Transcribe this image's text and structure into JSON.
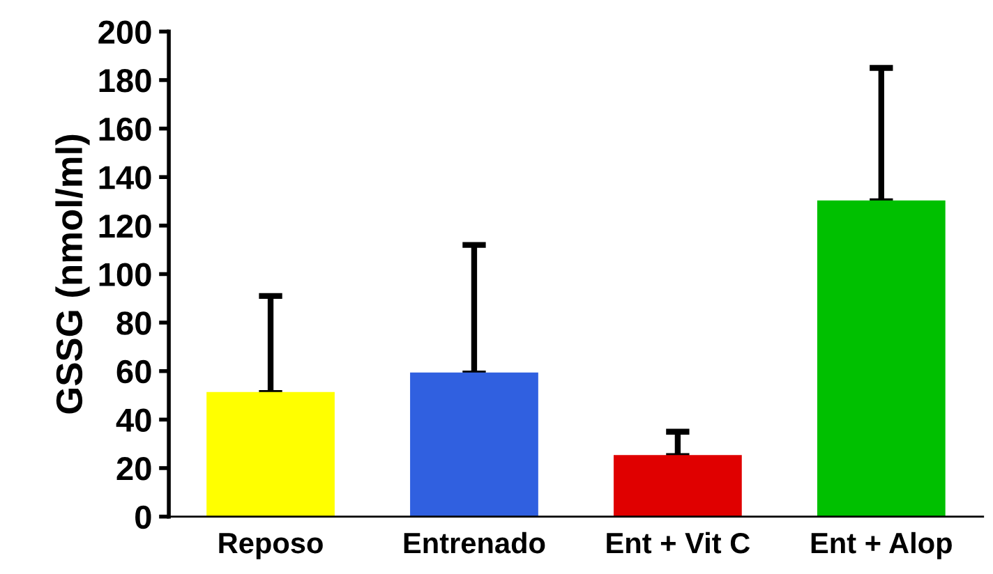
{
  "chart_data": {
    "type": "bar",
    "ylabel": "GSSG (nmol/ml)",
    "categories": [
      "Reposo",
      "Entrenado",
      "Ent + Vit C",
      "Ent + Alop"
    ],
    "values": [
      51,
      59,
      25,
      130
    ],
    "colors": [
      "#ffff00",
      "#3060e0",
      "#e00000",
      "#00c000"
    ],
    "errors": [
      [
        51,
        91
      ],
      [
        59,
        112
      ],
      [
        25,
        35
      ],
      [
        130,
        185
      ]
    ],
    "ylim": [
      0,
      200
    ],
    "yticks": [
      0,
      20,
      40,
      60,
      80,
      100,
      120,
      140,
      160,
      180,
      200
    ],
    "grid": false,
    "legend": false
  }
}
